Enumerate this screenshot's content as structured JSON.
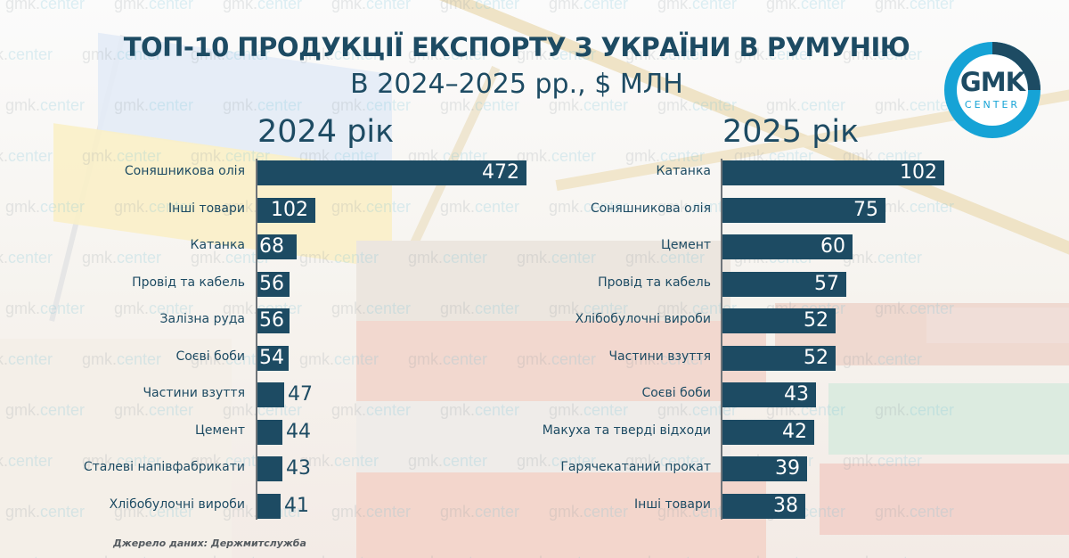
{
  "header": {
    "title": "ТОП-10 ПРОДУКЦІЇ ЕКСПОРТУ З УКРАЇНИ В РУМУНІЮ",
    "subtitle": "В 2024–2025 рр., $ МЛН"
  },
  "logo": {
    "main": "GMK",
    "sub": "CENTER",
    "ring_color_light": "#16a3d6",
    "ring_color_dark": "#1d4b63"
  },
  "watermark": {
    "prefix": "gmk.",
    "suffix": "center"
  },
  "colors": {
    "bar": "#1d4b63",
    "text": "#1d4b63",
    "value_inside": "#ffffff"
  },
  "source": "Джерело даних: Держмитслужба",
  "chart_data": [
    {
      "type": "bar",
      "orientation": "horizontal",
      "title": "2024 рік",
      "xlabel": "",
      "ylabel": "",
      "unit": "$ млн",
      "categories": [
        "Соняшникова олія",
        "Інші товари",
        "Катанка",
        "Провід та кабель",
        "Залізна руда",
        "Соєві боби",
        "Частини взуття",
        "Цемент",
        "Сталеві напівфабрикати",
        "Хлібобулочні вироби"
      ],
      "values": [
        472,
        102,
        68,
        56,
        56,
        54,
        47,
        44,
        43,
        41
      ],
      "grid": false,
      "legend": null
    },
    {
      "type": "bar",
      "orientation": "horizontal",
      "title": "2025 рік",
      "xlabel": "",
      "ylabel": "",
      "unit": "$ млн",
      "categories": [
        "Катанка",
        "Соняшникова олія",
        "Цемент",
        "Провід та кабель",
        "Хлібобулочні вироби",
        "Частини взуття",
        "Соєві боби",
        "Макуха та тверді відходи",
        "Гарячекатаний прокат",
        "Інші товари"
      ],
      "values": [
        102,
        75,
        60,
        57,
        52,
        52,
        43,
        42,
        39,
        38
      ],
      "grid": false,
      "legend": null
    }
  ]
}
